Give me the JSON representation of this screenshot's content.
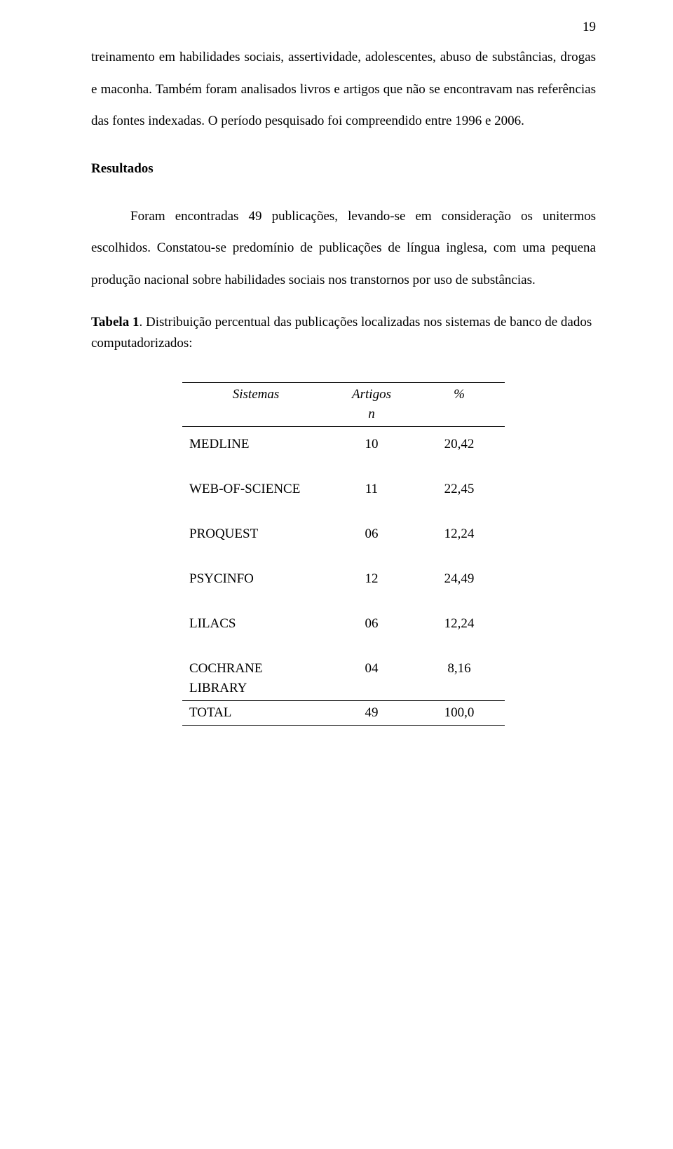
{
  "page_number": "19",
  "paragraphs": {
    "p1": "treinamento em habilidades sociais, assertividade, adolescentes, abuso de substâncias, drogas e maconha. Também foram analisados livros e artigos que não se encontravam nas referências das fontes indexadas.  O período pesquisado foi compreendido entre 1996 e 2006.",
    "heading": "Resultados",
    "p2": "Foram encontradas 49 publicações, levando-se em consideração os unitermos escolhidos. Constatou-se predomínio de publicações de língua inglesa, com uma pequena produção nacional sobre habilidades sociais nos transtornos por uso de substâncias.",
    "table_caption_prefix": "Tabela 1",
    "table_caption_text": ". Distribuição percentual das publicações localizadas nos sistemas de banco de dados computadorizados:"
  },
  "table": {
    "headers": {
      "sistemas": "Sistemas",
      "artigos": "Artigos",
      "n": "n",
      "pct": "%"
    },
    "rows": [
      {
        "sys": "MEDLINE",
        "n": "10",
        "pct": "20,42"
      },
      {
        "sys": "WEB-OF-SCIENCE",
        "n": "11",
        "pct": "22,45"
      },
      {
        "sys": "PROQUEST",
        "n": "06",
        "pct": "12,24"
      },
      {
        "sys": "PSYCINFO",
        "n": "12",
        "pct": "24,49"
      },
      {
        "sys": "LILACS",
        "n": "06",
        "pct": "12,24"
      },
      {
        "sys": "COCHRANE",
        "n": "04",
        "pct": "8,16"
      },
      {
        "sys": "LIBRARY",
        "n": "",
        "pct": ""
      },
      {
        "sys": "TOTAL",
        "n": "49",
        "pct": "100,0"
      }
    ]
  }
}
